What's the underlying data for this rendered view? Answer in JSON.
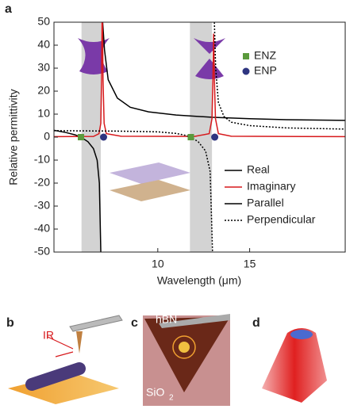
{
  "chart_data": {
    "type": "line",
    "xlabel": "Wavelength (μm)",
    "ylabel": "Relative permittivity",
    "xlim": [
      4.35,
      20.2
    ],
    "ylim": [
      -50,
      50
    ],
    "xticks": [
      10,
      15
    ],
    "yticks": [
      -50,
      -40,
      -30,
      -20,
      -10,
      0,
      10,
      20,
      30,
      40,
      50
    ],
    "grid": false,
    "bands": [
      [
        5.85,
        6.9
      ],
      [
        11.75,
        12.95
      ]
    ],
    "band_color": "#d3d3d3",
    "series": [
      {
        "name": "Parallel",
        "color": "#000000",
        "dash": "solid",
        "x": [
          4.35,
          5,
          5.5,
          5.82,
          6.2,
          6.5,
          6.7,
          6.82,
          6.9,
          6.95,
          7.0,
          7.1,
          7.3,
          7.8,
          8.5,
          9.5,
          11,
          13,
          15,
          17,
          20.2
        ],
        "values": [
          3,
          2,
          1,
          0,
          -2,
          -5,
          -10,
          -20,
          -50,
          null,
          50,
          38,
          25,
          17,
          13,
          11,
          9.6,
          8.6,
          8,
          7.6,
          7.3
        ]
      },
      {
        "name": "Imaginary",
        "color": "#d7191c",
        "dash": "solid",
        "x": [
          4.35,
          6.5,
          6.8,
          6.9,
          6.94,
          6.96,
          6.99,
          7.02,
          7.08,
          7.2,
          8,
          12,
          12.8,
          12.95,
          13.0,
          13.04,
          13.08,
          13.14,
          13.3,
          14,
          20.2
        ],
        "values": [
          0.2,
          0.3,
          1.5,
          6,
          25,
          50,
          50,
          25,
          6,
          1.5,
          0.4,
          0.3,
          1.5,
          8,
          25,
          45,
          25,
          8,
          1.5,
          0.4,
          0.2
        ]
      },
      {
        "name": "Perpendicular",
        "color": "#000000",
        "dash": "dotted",
        "x": [
          4.35,
          8,
          10,
          11,
          11.5,
          11.8,
          12.2,
          12.6,
          12.85,
          12.98,
          13.03,
          13.08,
          13.15,
          13.3,
          13.6,
          14,
          15,
          17,
          20.2
        ],
        "values": [
          2.8,
          2.6,
          2.3,
          1.6,
          0.8,
          0,
          -2,
          -6,
          -15,
          -50,
          null,
          50,
          30,
          15,
          9,
          6.5,
          5,
          4,
          3.5
        ]
      },
      {
        "name": "ENZ",
        "color": "#5a9a3c",
        "marker": "square",
        "x": [
          5.82,
          11.8
        ],
        "values": [
          0,
          0
        ]
      },
      {
        "name": "ENP",
        "color": "#2e3580",
        "marker": "circle",
        "x": [
          7.05,
          13.1
        ],
        "values": [
          0,
          0
        ]
      }
    ],
    "legend": [
      {
        "label": "Real",
        "color": "#000000",
        "dash": "solid"
      },
      {
        "label": "Imaginary",
        "color": "#d7191c",
        "dash": "solid"
      },
      {
        "label": "Parallel",
        "color": "#000000",
        "dash": "solid"
      },
      {
        "label": "Perpendicular",
        "color": "#000000",
        "dash": "dotted"
      }
    ]
  },
  "panels": [
    "a",
    "b",
    "c",
    "d"
  ],
  "annotations": {
    "ir": "IR",
    "hbn": "hBN",
    "substrate": "SiO",
    "substrate_sub": "2"
  }
}
